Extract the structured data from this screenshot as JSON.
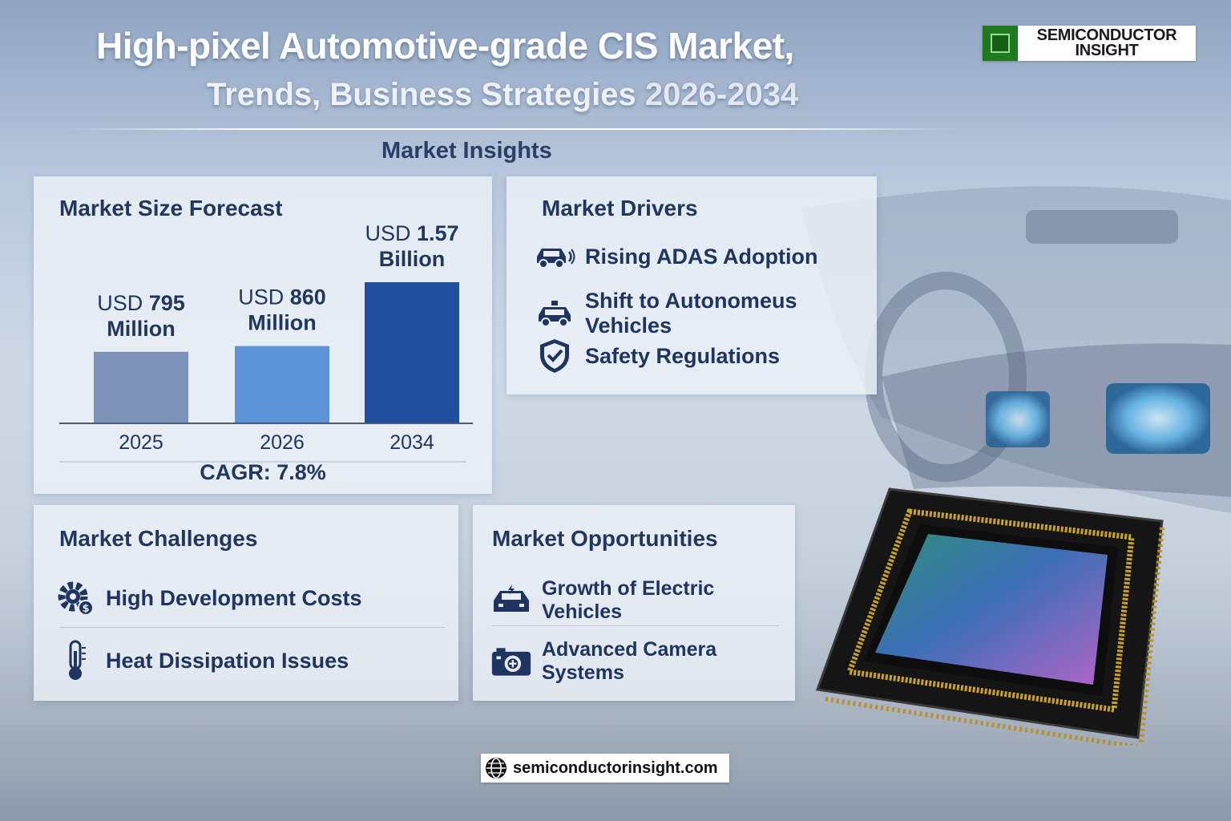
{
  "header": {
    "title_line1": "High-pixel Automotive-grade CIS Market,",
    "title_line2": "Trends, Business Strategies",
    "title_years": "2026-2034"
  },
  "logo": {
    "line1": "SEMICONDUCTOR",
    "line2": "INSIGHT"
  },
  "section_heading": "Market Insights",
  "forecast": {
    "title": "Market Size Forecast",
    "cagr": "CAGR: 7.8%",
    "chart_data": {
      "type": "bar",
      "categories": [
        "2025",
        "2026",
        "2034"
      ],
      "values": [
        795,
        860,
        1570
      ],
      "unit": "USD Million",
      "labels": [
        {
          "prefix": "USD",
          "value": "795",
          "suffix": "Million"
        },
        {
          "prefix": "USD",
          "value": "860",
          "suffix": "Million"
        },
        {
          "prefix": "USD",
          "value": "1.57",
          "suffix": "Billion"
        }
      ],
      "colors": [
        "#7d92b8",
        "#5c93d6",
        "#1f4e9e"
      ]
    }
  },
  "drivers": {
    "title": "Market Drivers",
    "items": [
      {
        "label": "Rising ADAS Adoption",
        "icon": "car-sensor-icon"
      },
      {
        "label": "Shift to Autonomeus Vehicles",
        "icon": "autonomous-car-icon"
      },
      {
        "label": "Safety Regulations",
        "icon": "shield-check-icon"
      }
    ]
  },
  "challenges": {
    "title": "Market Challenges",
    "items": [
      {
        "label": "High Development Costs",
        "icon": "gear-dollar-icon"
      },
      {
        "label": "Heat Dissipation Issues",
        "icon": "thermometer-icon"
      }
    ]
  },
  "opportunities": {
    "title": "Market Opportunities",
    "items": [
      {
        "label": "Growth of Electric Vehicles",
        "icon": "ev-car-icon"
      },
      {
        "label": "Advanced Camera Systems",
        "icon": "camera-icon"
      }
    ]
  },
  "footer": {
    "url": "semiconductorinsight.com"
  },
  "colors": {
    "heading": "#22375e",
    "text": "#1f3560",
    "accent": "#1f4e9e"
  }
}
